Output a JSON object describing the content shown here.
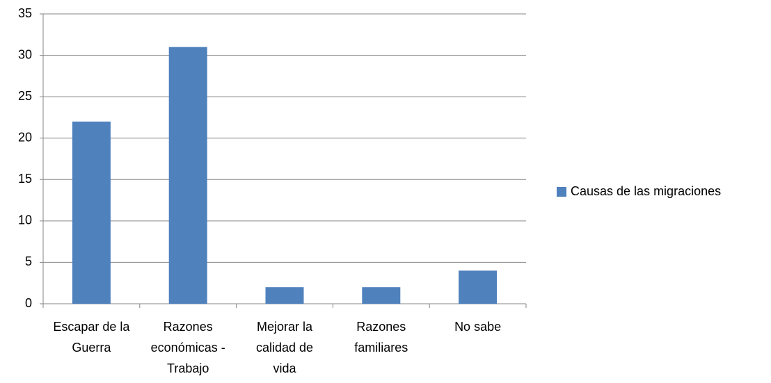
{
  "chart_data": {
    "type": "bar",
    "categories": [
      "Escapar de la Guerra",
      "Razones económicas - Trabajo",
      "Mejorar la calidad de vida",
      "Razones familiares",
      "No sabe"
    ],
    "series": [
      {
        "name": "Causas de las migraciones",
        "color": "#4f81bd",
        "values": [
          22,
          31,
          2,
          2,
          4
        ]
      }
    ],
    "ylim": [
      0,
      35
    ],
    "yticks": [
      0,
      5,
      10,
      15,
      20,
      25,
      30,
      35
    ],
    "grid": true,
    "legend": "right"
  }
}
